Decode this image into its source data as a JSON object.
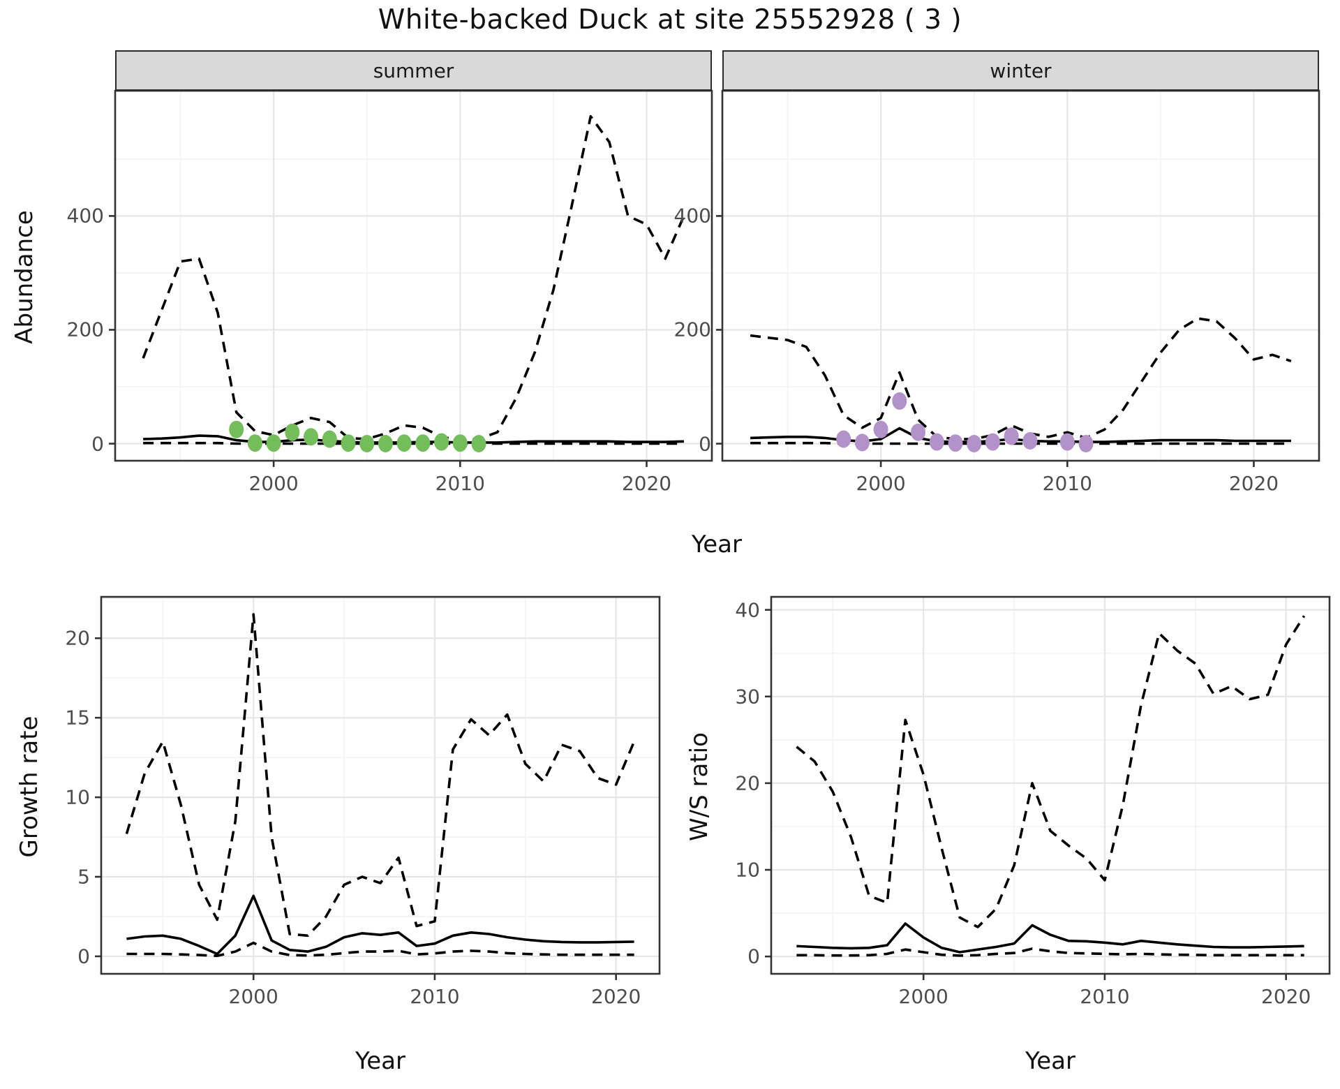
{
  "title": "White-backed Duck at site 25552928 ( 3 )",
  "colors": {
    "summer_point": "#74BD5B",
    "winter_point": "#B391C9",
    "line": "#000000",
    "strip_bg": "#d9d9d9",
    "strip_border": "#2b2b2b",
    "panel_border": "#333333",
    "grid_major": "#e6e6e6",
    "grid_minor": "#f3f3f3",
    "tick_label": "#4d4d4d"
  },
  "chart_data": [
    {
      "type": "line",
      "facet": "summer",
      "title": "Abundance - summer facet",
      "xlabel": "Year",
      "ylabel": "Abundance",
      "xlim": [
        1991.5,
        2023.5
      ],
      "ylim": [
        -30,
        620
      ],
      "x_ticks": [
        2000,
        2010,
        2020
      ],
      "x_tick_labels": [
        "2000",
        "2010",
        "2020"
      ],
      "x_minor": [
        1995,
        2005,
        2015
      ],
      "y_ticks": [
        0,
        200,
        400
      ],
      "y_tick_labels": [
        "0",
        "200",
        "400"
      ],
      "y_minor": [
        100,
        300,
        500
      ],
      "grid": true,
      "legend": "none",
      "x": [
        1993,
        1994,
        1995,
        1996,
        1997,
        1998,
        1999,
        2000,
        2001,
        2002,
        2003,
        2004,
        2005,
        2006,
        2007,
        2008,
        2009,
        2010,
        2011,
        2012,
        2013,
        2014,
        2015,
        2016,
        2017,
        2018,
        2019,
        2020,
        2021,
        2022
      ],
      "series": [
        {
          "name": "upper_ci",
          "style": "dashed",
          "values": [
            150,
            235,
            320,
            325,
            230,
            55,
            22,
            15,
            32,
            45,
            38,
            10,
            8,
            18,
            32,
            28,
            12,
            6,
            8,
            20,
            80,
            160,
            270,
            420,
            575,
            530,
            400,
            385,
            325,
            400
          ]
        },
        {
          "name": "median",
          "style": "solid",
          "values": [
            8,
            9,
            11,
            14,
            13,
            6,
            3,
            3,
            6,
            7,
            5,
            3,
            2,
            2,
            2,
            3,
            3,
            2,
            2,
            2,
            3,
            4,
            4,
            4,
            4,
            4,
            3,
            3,
            3,
            4
          ]
        },
        {
          "name": "lower_ci",
          "style": "dashed",
          "values": [
            1,
            1,
            1,
            1,
            1,
            0,
            0,
            0,
            0,
            0,
            0,
            0,
            0,
            0,
            0,
            0,
            0,
            0,
            0,
            0,
            0,
            0,
            0,
            0,
            0,
            0,
            0,
            0,
            0,
            0
          ]
        }
      ],
      "points": {
        "name": "observed_counts",
        "color_key": "summer_point",
        "xy": [
          [
            1998,
            25
          ],
          [
            1999,
            1
          ],
          [
            2000,
            1
          ],
          [
            2001,
            20
          ],
          [
            2002,
            12
          ],
          [
            2003,
            8
          ],
          [
            2004,
            1
          ],
          [
            2005,
            0
          ],
          [
            2006,
            0
          ],
          [
            2007,
            1
          ],
          [
            2008,
            1
          ],
          [
            2009,
            3
          ],
          [
            2010,
            1
          ],
          [
            2011,
            0
          ]
        ]
      }
    },
    {
      "type": "line",
      "facet": "winter",
      "title": "Abundance - winter facet",
      "xlabel": "Year",
      "ylabel": "Abundance",
      "xlim": [
        1991.5,
        2023.5
      ],
      "ylim": [
        -30,
        620
      ],
      "x_ticks": [
        2000,
        2010,
        2020
      ],
      "x_tick_labels": [
        "2000",
        "2010",
        "2020"
      ],
      "x_minor": [
        1995,
        2005,
        2015
      ],
      "y_ticks": [
        0,
        200,
        400
      ],
      "y_tick_labels": [
        "0",
        "200",
        "400"
      ],
      "y_minor": [
        100,
        300,
        500
      ],
      "grid": true,
      "legend": "none",
      "x": [
        1993,
        1994,
        1995,
        1996,
        1997,
        1998,
        1999,
        2000,
        2001,
        2002,
        2003,
        2004,
        2005,
        2006,
        2007,
        2008,
        2009,
        2010,
        2011,
        2012,
        2013,
        2014,
        2015,
        2016,
        2017,
        2018,
        2019,
        2020,
        2021,
        2022
      ],
      "series": [
        {
          "name": "upper_ci",
          "style": "dashed",
          "values": [
            190,
            186,
            182,
            170,
            120,
            50,
            28,
            45,
            125,
            42,
            12,
            8,
            8,
            15,
            32,
            18,
            12,
            20,
            10,
            25,
            60,
            110,
            160,
            200,
            220,
            215,
            185,
            148,
            156,
            145
          ]
        },
        {
          "name": "median",
          "style": "solid",
          "values": [
            10,
            11,
            12,
            12,
            10,
            6,
            4,
            8,
            27,
            10,
            4,
            3,
            3,
            5,
            8,
            5,
            4,
            4,
            3,
            3,
            4,
            5,
            6,
            6,
            6,
            6,
            5,
            5,
            5,
            5
          ]
        },
        {
          "name": "lower_ci",
          "style": "dashed",
          "values": [
            1,
            1,
            1,
            1,
            1,
            0,
            0,
            0,
            0,
            0,
            0,
            0,
            0,
            0,
            0,
            0,
            0,
            0,
            0,
            0,
            0,
            0,
            0,
            0,
            0,
            0,
            0,
            0,
            0,
            0
          ]
        }
      ],
      "points": {
        "name": "observed_counts",
        "color_key": "winter_point",
        "xy": [
          [
            1998,
            8
          ],
          [
            1999,
            2
          ],
          [
            2000,
            25
          ],
          [
            2001,
            75
          ],
          [
            2002,
            20
          ],
          [
            2003,
            3
          ],
          [
            2004,
            1
          ],
          [
            2005,
            0
          ],
          [
            2006,
            3
          ],
          [
            2007,
            13
          ],
          [
            2008,
            5
          ],
          [
            2010,
            3
          ],
          [
            2011,
            0
          ]
        ]
      }
    },
    {
      "type": "line",
      "facet": null,
      "title": "Growth rate",
      "xlabel": "Year",
      "ylabel": "Growth rate",
      "xlim": [
        1991.6,
        2022.4
      ],
      "ylim": [
        -1.1,
        22.6
      ],
      "x_ticks": [
        2000,
        2010,
        2020
      ],
      "x_tick_labels": [
        "2000",
        "2010",
        "2020"
      ],
      "x_minor": [
        1995,
        2005,
        2015
      ],
      "y_ticks": [
        0,
        5,
        10,
        15,
        20
      ],
      "y_tick_labels": [
        "0",
        "5",
        "10",
        "15",
        "20"
      ],
      "y_minor": [
        2.5,
        7.5,
        12.5,
        17.5,
        22.5
      ],
      "grid": true,
      "legend": "none",
      "x": [
        1993,
        1994,
        1995,
        1996,
        1997,
        1998,
        1999,
        2000,
        2001,
        2002,
        2003,
        2004,
        2005,
        2006,
        2007,
        2008,
        2009,
        2010,
        2011,
        2012,
        2013,
        2014,
        2015,
        2016,
        2017,
        2018,
        2019,
        2020,
        2021
      ],
      "series": [
        {
          "name": "upper_ci",
          "style": "dashed",
          "values": [
            7.7,
            11.5,
            13.5,
            9.5,
            4.5,
            2.3,
            8.5,
            21.5,
            7.5,
            1.4,
            1.3,
            2.5,
            4.5,
            5.0,
            4.6,
            6.2,
            1.9,
            2.2,
            13.0,
            14.9,
            13.9,
            15.2,
            12.1,
            11.0,
            13.3,
            12.9,
            11.2,
            10.8,
            13.5
          ]
        },
        {
          "name": "median",
          "style": "solid",
          "values": [
            1.1,
            1.25,
            1.3,
            1.1,
            0.65,
            0.15,
            1.3,
            3.8,
            1.0,
            0.4,
            0.3,
            0.6,
            1.2,
            1.45,
            1.35,
            1.5,
            0.65,
            0.8,
            1.3,
            1.5,
            1.4,
            1.2,
            1.05,
            0.95,
            0.9,
            0.88,
            0.88,
            0.9,
            0.92
          ]
        },
        {
          "name": "lower_ci",
          "style": "dashed",
          "values": [
            0.15,
            0.15,
            0.15,
            0.12,
            0.08,
            0.03,
            0.3,
            0.85,
            0.3,
            0.08,
            0.05,
            0.1,
            0.2,
            0.3,
            0.3,
            0.35,
            0.12,
            0.18,
            0.3,
            0.35,
            0.3,
            0.2,
            0.15,
            0.12,
            0.1,
            0.1,
            0.1,
            0.1,
            0.1
          ]
        }
      ],
      "points": null
    },
    {
      "type": "line",
      "facet": null,
      "title": "W/S ratio",
      "xlabel": "Year",
      "ylabel": "W/S ratio",
      "xlim": [
        1991.6,
        2022.4
      ],
      "ylim": [
        -2,
        41.5
      ],
      "x_ticks": [
        2000,
        2010,
        2020
      ],
      "x_tick_labels": [
        "2000",
        "2010",
        "2020"
      ],
      "x_minor": [
        1995,
        2005,
        2015
      ],
      "y_ticks": [
        0,
        10,
        20,
        30,
        40
      ],
      "y_tick_labels": [
        "0",
        "10",
        "20",
        "30",
        "40"
      ],
      "y_minor": [
        5,
        15,
        25,
        35
      ],
      "grid": true,
      "legend": "none",
      "x": [
        1993,
        1994,
        1995,
        1996,
        1997,
        1998,
        1999,
        2000,
        2001,
        2002,
        2003,
        2004,
        2005,
        2006,
        2007,
        2008,
        2009,
        2010,
        2011,
        2012,
        2013,
        2014,
        2015,
        2016,
        2017,
        2018,
        2019,
        2020,
        2021
      ],
      "series": [
        {
          "name": "upper_ci",
          "style": "dashed",
          "values": [
            24.2,
            22.5,
            19.0,
            13.8,
            7.0,
            6.2,
            27.3,
            21.0,
            12.5,
            4.5,
            3.4,
            5.5,
            10.5,
            20.0,
            14.5,
            12.8,
            11.3,
            8.8,
            17.5,
            29.0,
            37.3,
            35.3,
            33.8,
            30.3,
            31.2,
            29.7,
            30.2,
            36.0,
            39.3
          ]
        },
        {
          "name": "median",
          "style": "solid",
          "values": [
            1.2,
            1.1,
            1.0,
            0.95,
            1.0,
            1.3,
            3.8,
            2.2,
            1.0,
            0.5,
            0.8,
            1.1,
            1.5,
            3.6,
            2.5,
            1.8,
            1.75,
            1.6,
            1.4,
            1.8,
            1.6,
            1.4,
            1.25,
            1.1,
            1.05,
            1.05,
            1.1,
            1.15,
            1.2
          ]
        },
        {
          "name": "lower_ci",
          "style": "dashed",
          "values": [
            0.15,
            0.15,
            0.12,
            0.12,
            0.15,
            0.3,
            0.8,
            0.5,
            0.2,
            0.1,
            0.15,
            0.3,
            0.4,
            0.9,
            0.6,
            0.4,
            0.35,
            0.3,
            0.25,
            0.3,
            0.25,
            0.2,
            0.18,
            0.15,
            0.15,
            0.15,
            0.15,
            0.15,
            0.15
          ]
        }
      ],
      "points": null
    }
  ]
}
